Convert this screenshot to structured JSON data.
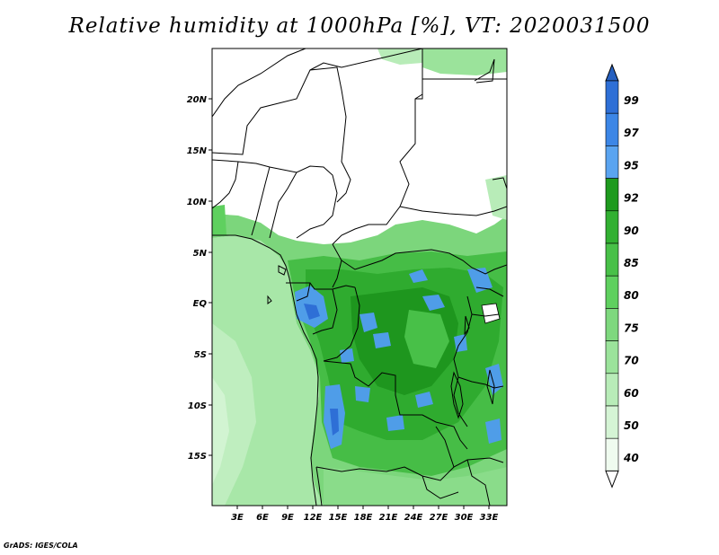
{
  "title": "Relative humidity at 1000hPa [%], VT: 2020031500",
  "credit": "GrADS: IGES/COLA",
  "lat_labels": [
    "20N",
    "15N",
    "10N",
    "5N",
    "EQ",
    "5S",
    "10S",
    "15S"
  ],
  "lon_labels": [
    "3E",
    "6E",
    "9E",
    "12E",
    "15E",
    "18E",
    "21E",
    "24E",
    "27E",
    "30E",
    "33E"
  ],
  "colorbar": {
    "levels": [
      {
        "value": "99",
        "color": "#2e6fd6"
      },
      {
        "value": "97",
        "color": "#3c86e6"
      },
      {
        "value": "95",
        "color": "#5aa4f0"
      },
      {
        "value": "92",
        "color": "#1e9a1e"
      },
      {
        "value": "90",
        "color": "#32b032"
      },
      {
        "value": "85",
        "color": "#48c048"
      },
      {
        "value": "80",
        "color": "#5fd05f"
      },
      {
        "value": "75",
        "color": "#7ed87e"
      },
      {
        "value": "70",
        "color": "#9be39b"
      },
      {
        "value": "60",
        "color": "#b8ecb8"
      },
      {
        "value": "50",
        "color": "#d5f4d5"
      },
      {
        "value": "40",
        "color": "#effbef"
      }
    ],
    "top_color": "#2660c0",
    "bottom_color": "#ffffff"
  }
}
